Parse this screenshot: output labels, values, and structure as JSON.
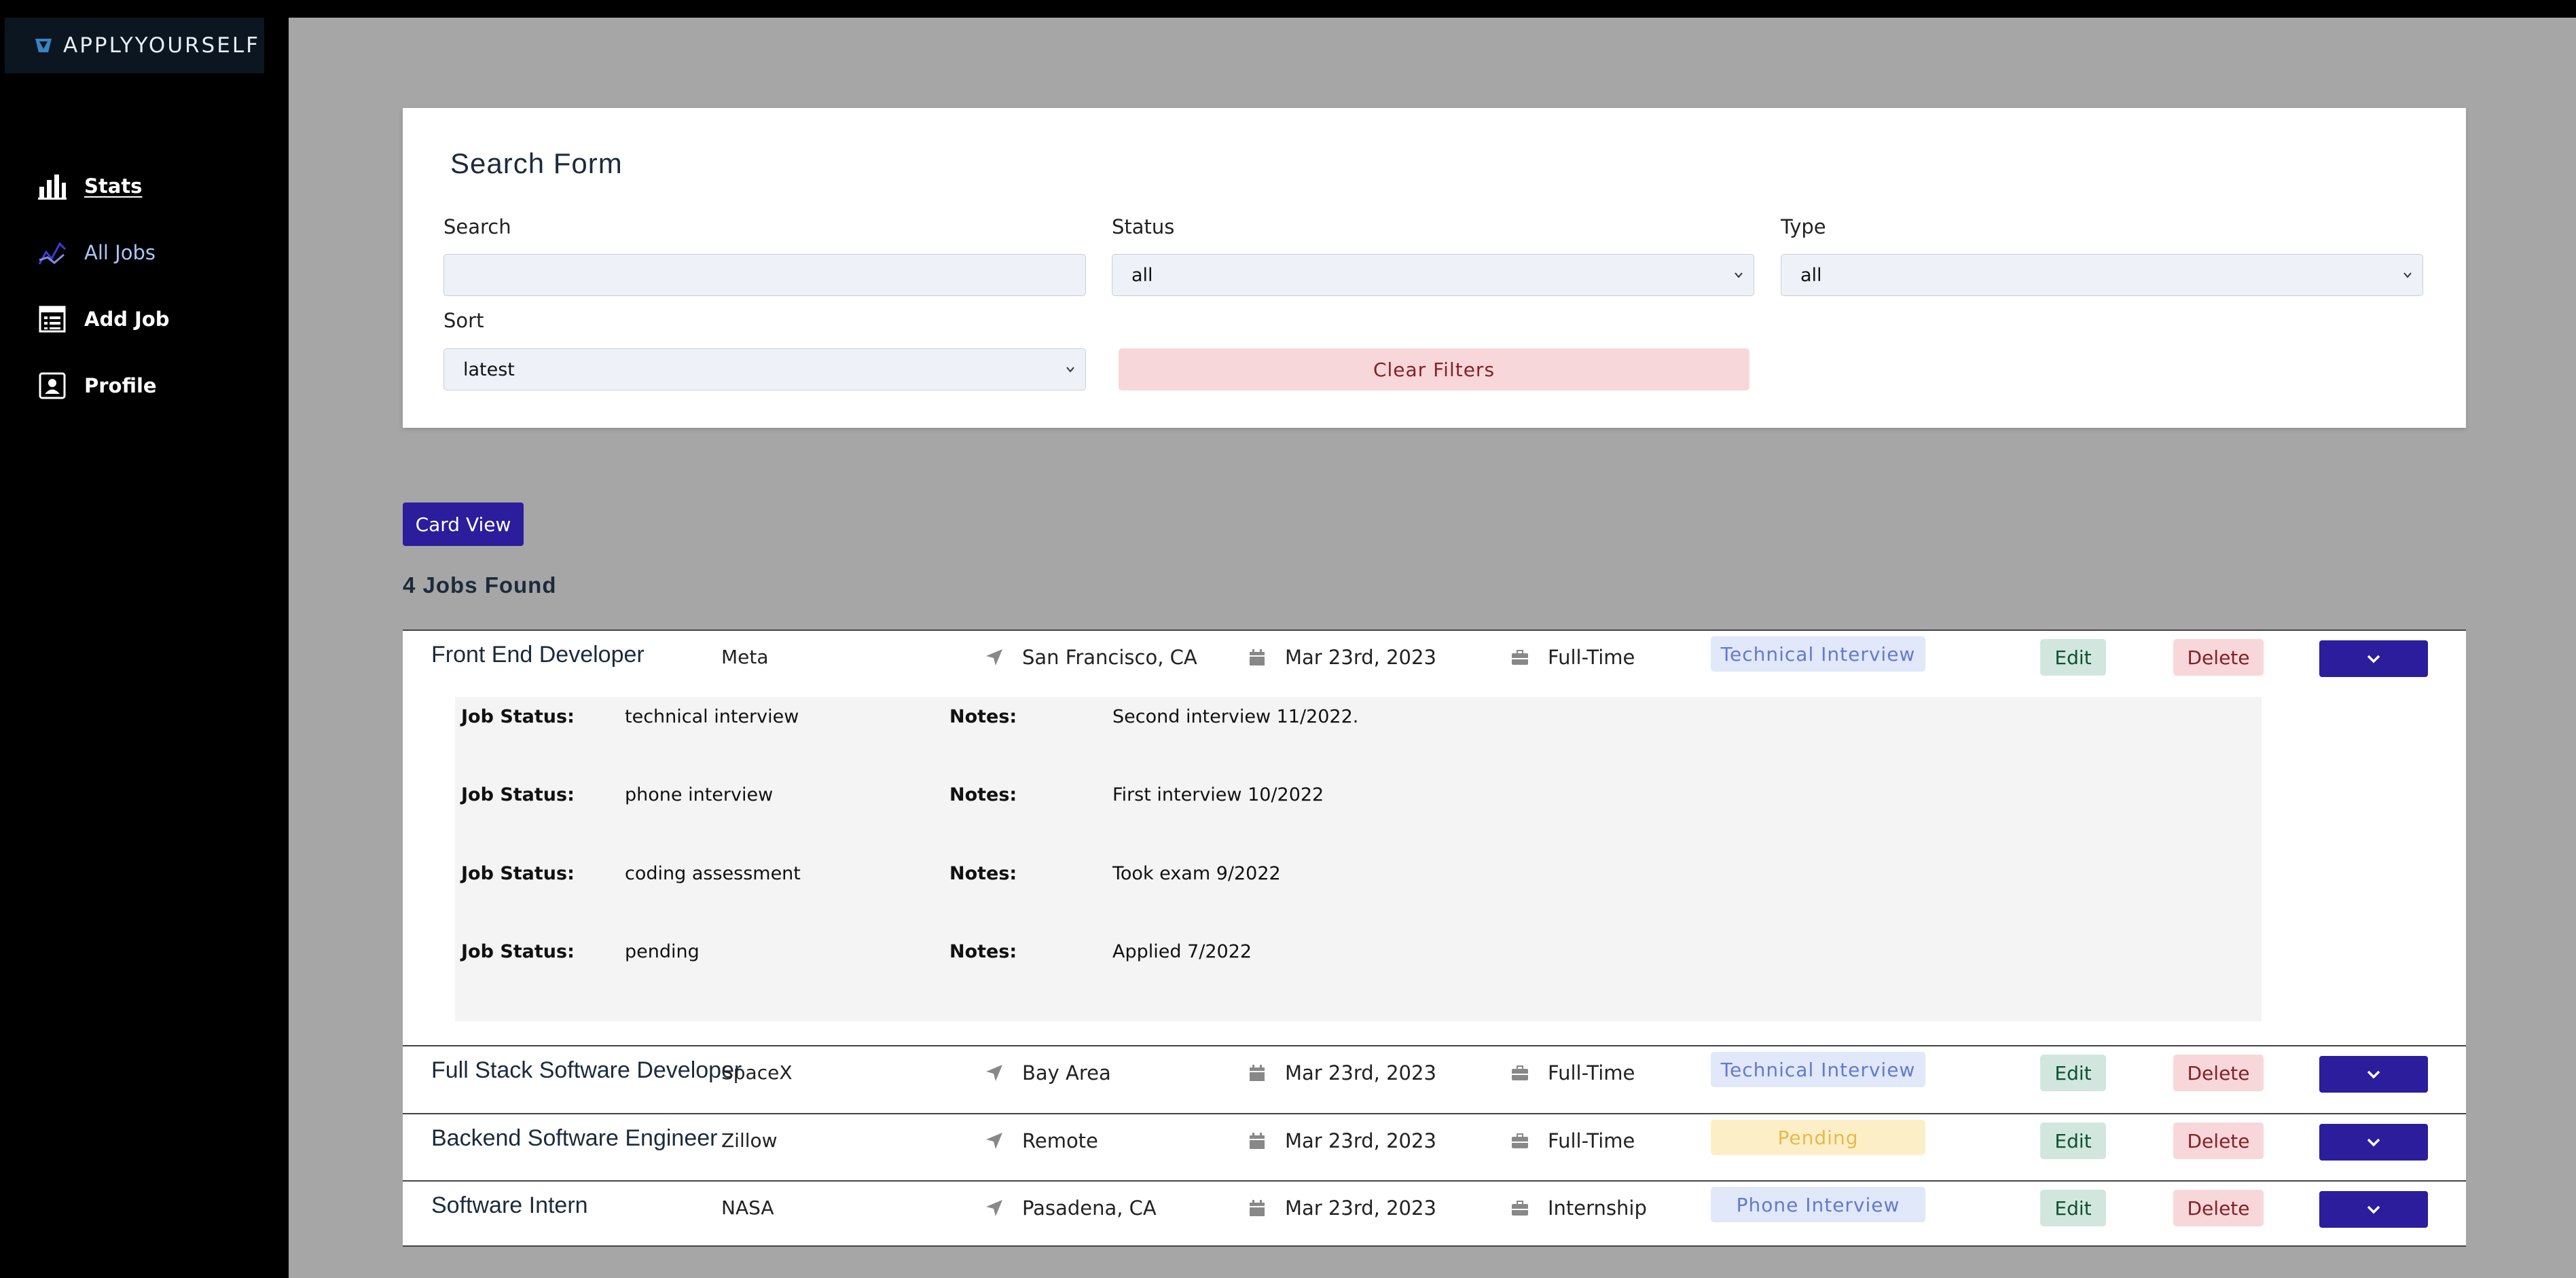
{
  "brand": {
    "name": "APPLYYOURSELF",
    "logo_icon": "shield-logo-icon"
  },
  "sidebar": {
    "items": [
      {
        "label": "Stats",
        "icon": "bar-chart-icon"
      },
      {
        "label": "All Jobs",
        "icon": "trend-lines-icon"
      },
      {
        "label": "Add Job",
        "icon": "form-icon"
      },
      {
        "label": "Profile",
        "icon": "id-card-icon"
      }
    ]
  },
  "search_form": {
    "title": "Search Form",
    "search_label": "Search",
    "search_value": "",
    "status_label": "Status",
    "status_value": "all",
    "type_label": "Type",
    "type_value": "all",
    "sort_label": "Sort",
    "sort_value": "latest",
    "clear_label": "Clear Filters"
  },
  "card_view_label": "Card View",
  "jobs_found": "4 Jobs Found",
  "jobs": [
    {
      "title": "Front End Developer",
      "company": "Meta",
      "location": "San Francisco, CA",
      "date": "Mar 23rd, 2023",
      "type": "Full-Time",
      "status": "Technical Interview",
      "edit": "Edit",
      "delete": "Delete",
      "history": [
        {
          "status_key": "Job Status:",
          "status": "technical interview",
          "notes_key": "Notes:",
          "notes": "Second interview 11/2022."
        },
        {
          "status_key": "Job Status:",
          "status": "phone interview",
          "notes_key": "Notes:",
          "notes": "First interview 10/2022"
        },
        {
          "status_key": "Job Status:",
          "status": "coding assessment",
          "notes_key": "Notes:",
          "notes": "Took exam 9/2022"
        },
        {
          "status_key": "Job Status:",
          "status": "pending",
          "notes_key": "Notes:",
          "notes": "Applied 7/2022"
        }
      ]
    },
    {
      "title": "Full Stack Software Developer",
      "company": "SpaceX",
      "location": "Bay Area",
      "date": "Mar 23rd, 2023",
      "type": "Full-Time",
      "status": "Technical Interview",
      "edit": "Edit",
      "delete": "Delete"
    },
    {
      "title": "Backend Software Engineer",
      "company": "Zillow",
      "location": "Remote",
      "date": "Mar 23rd, 2023",
      "type": "Full-Time",
      "status": "Pending",
      "edit": "Edit",
      "delete": "Delete"
    },
    {
      "title": "Software Intern",
      "company": "NASA",
      "location": "Pasadena, CA",
      "date": "Mar 23rd, 2023",
      "type": "Internship",
      "status": "Phone Interview",
      "edit": "Edit",
      "delete": "Delete"
    }
  ],
  "colors": {
    "sidebar_bg": "#000000",
    "content_bg": "#a6a6a6",
    "primary": "#2b1d9b",
    "danger_bg": "#f8d7da",
    "success_bg": "#d1e7dd"
  }
}
